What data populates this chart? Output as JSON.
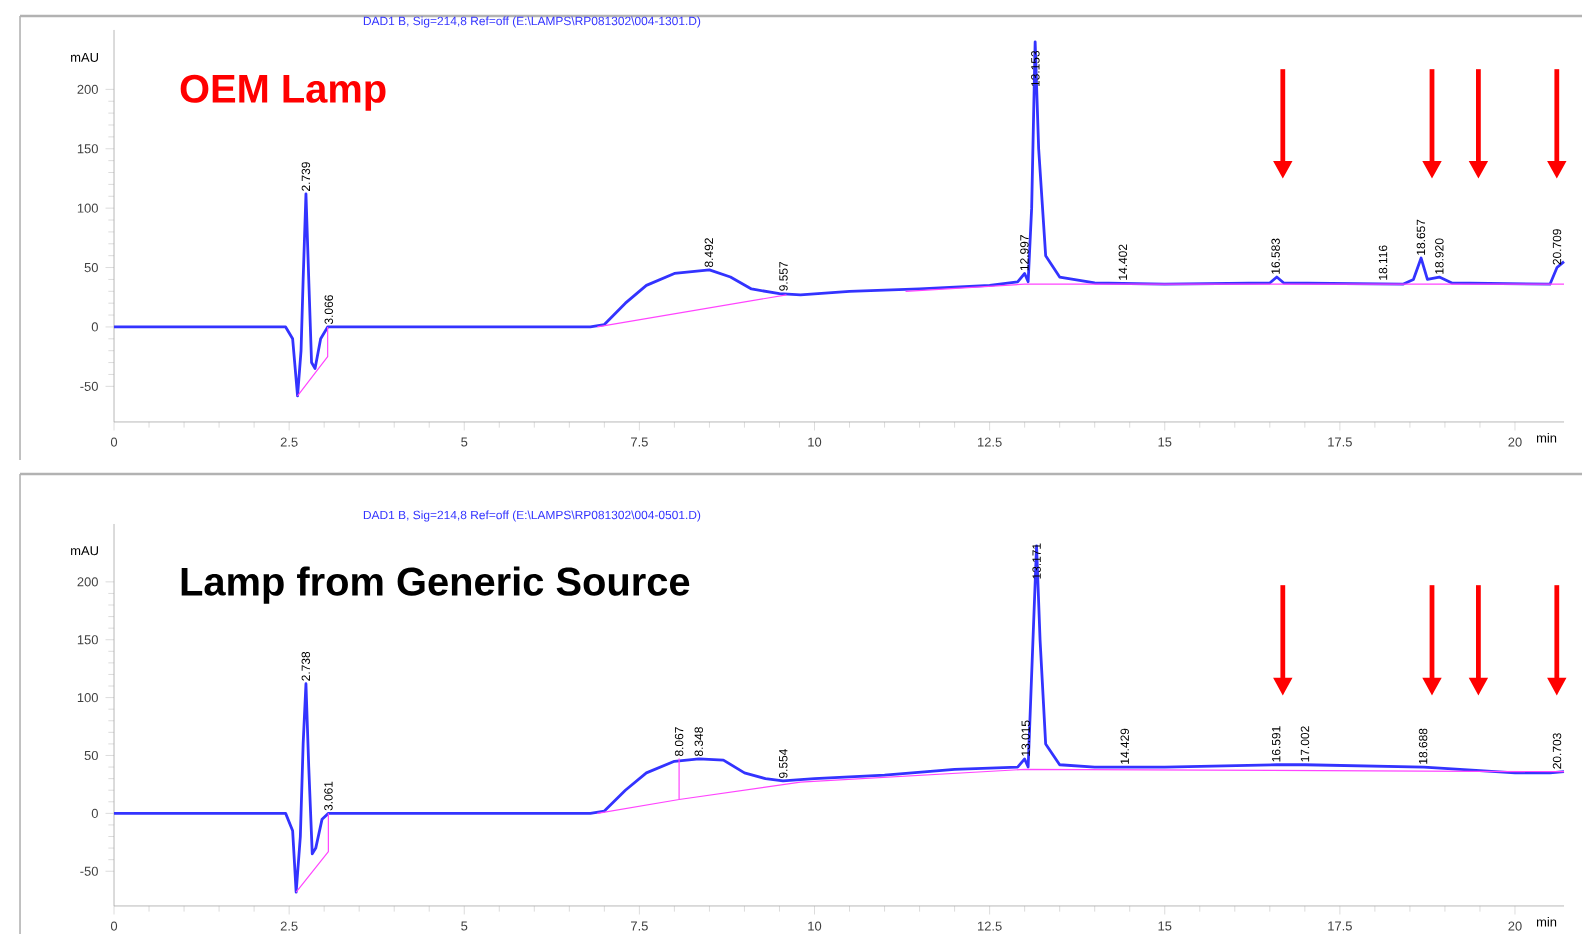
{
  "chart_data": [
    {
      "type": "line",
      "title": "OEM Lamp",
      "xlabel": "min",
      "ylabel": "mAU",
      "xlim": [
        0,
        20.7
      ],
      "ylim": [
        -80,
        250
      ],
      "xticks": [
        0,
        2.5,
        5,
        7.5,
        10,
        12.5,
        15,
        17.5,
        20
      ],
      "yticks": [
        -50,
        0,
        50,
        100,
        150,
        200
      ],
      "grid": false,
      "marker": "none",
      "line_style": "solid",
      "annotations": [
        "DAD1 B, Sig=214,8 Ref=off (E:\\LAMPS\\RP081302\\004-1301.D)",
        {
          "text": "2.739",
          "x": 2.739,
          "y": 112
        },
        {
          "text": "3.066",
          "x": 3.066,
          "y": 0
        },
        {
          "text": "8.492",
          "x": 8.492,
          "y": 48
        },
        {
          "text": "9.557",
          "x": 9.557,
          "y": 28
        },
        {
          "text": "12.997",
          "x": 12.997,
          "y": 45
        },
        {
          "text": "13.153",
          "x": 13.153,
          "y": 200
        },
        {
          "text": "14.402",
          "x": 14.402,
          "y": 37
        },
        {
          "text": "16.583",
          "x": 16.583,
          "y": 42
        },
        {
          "text": "18.116",
          "x": 18.116,
          "y": 37
        },
        {
          "text": "18.657",
          "x": 18.657,
          "y": 58
        },
        {
          "text": "18.920",
          "x": 18.92,
          "y": 42
        },
        {
          "text": "20.709",
          "x": 20.6,
          "y": 50
        }
      ],
      "series": [
        {
          "color": "#3333ff",
          "x": [
            0,
            2.45,
            2.55,
            2.62,
            2.67,
            2.7,
            2.74,
            2.78,
            2.82,
            2.87,
            2.95,
            3.05,
            3.1,
            6.8,
            7.0,
            7.3,
            7.6,
            8.0,
            8.5,
            8.8,
            9.1,
            9.5,
            9.8,
            10.5,
            11.5,
            12.5,
            12.9,
            13.0,
            13.05,
            13.1,
            13.15,
            13.2,
            13.3,
            13.5,
            14,
            15,
            16.5,
            16.6,
            16.7,
            18.4,
            18.55,
            18.66,
            18.75,
            18.92,
            19.1,
            20.5,
            20.6,
            20.7
          ],
          "values": [
            0,
            0,
            -10,
            -58,
            -20,
            40,
            112,
            40,
            -30,
            -35,
            -10,
            0,
            0,
            0,
            2,
            20,
            35,
            45,
            48,
            42,
            32,
            28,
            27,
            30,
            32,
            35,
            38,
            45,
            38,
            100,
            240,
            150,
            60,
            42,
            37,
            36,
            37,
            42,
            37,
            36,
            40,
            58,
            40,
            42,
            37,
            36,
            50,
            55
          ]
        },
        {
          "color": "#ff44ff",
          "x": [
            2.62,
            3.05,
            3.05,
            4,
            6.9,
            9.6,
            10.5,
            11.3,
            13.0,
            20.7
          ],
          "values": [
            -58,
            -25,
            0,
            null,
            0,
            27,
            null,
            30,
            36,
            36
          ]
        }
      ]
    },
    {
      "type": "line",
      "title": "Lamp from Generic Source",
      "xlabel": "min",
      "ylabel": "mAU",
      "xlim": [
        0,
        20.7
      ],
      "ylim": [
        -80,
        250
      ],
      "xticks": [
        0,
        2.5,
        5,
        7.5,
        10,
        12.5,
        15,
        17.5,
        20
      ],
      "yticks": [
        -50,
        0,
        50,
        100,
        150,
        200
      ],
      "grid": false,
      "marker": "none",
      "line_style": "solid",
      "annotations": [
        "DAD1 B, Sig=214,8 Ref=off (E:\\LAMPS\\RP081302\\004-0501.D)",
        {
          "text": "2.738",
          "x": 2.738,
          "y": 112
        },
        {
          "text": "3.061",
          "x": 3.061,
          "y": 0
        },
        {
          "text": "8.067",
          "x": 8.067,
          "y": 47
        },
        {
          "text": "8.348",
          "x": 8.348,
          "y": 47
        },
        {
          "text": "9.554",
          "x": 9.554,
          "y": 28
        },
        {
          "text": "13.015",
          "x": 13.015,
          "y": 47
        },
        {
          "text": "13.171",
          "x": 13.171,
          "y": 200
        },
        {
          "text": "14.429",
          "x": 14.429,
          "y": 40
        },
        {
          "text": "16.591",
          "x": 16.591,
          "y": 42
        },
        {
          "text": "17.002",
          "x": 17.002,
          "y": 42
        },
        {
          "text": "18.688",
          "x": 18.688,
          "y": 40
        },
        {
          "text": "20.703",
          "x": 20.6,
          "y": 36
        }
      ],
      "series": [
        {
          "color": "#3333ff",
          "x": [
            0,
            2.45,
            2.55,
            2.6,
            2.66,
            2.7,
            2.74,
            2.78,
            2.83,
            2.88,
            2.97,
            3.06,
            6.8,
            7.0,
            7.3,
            7.6,
            8.0,
            8.35,
            8.7,
            9.0,
            9.3,
            9.55,
            10,
            11,
            12,
            12.9,
            13.0,
            13.05,
            13.1,
            13.17,
            13.22,
            13.3,
            13.5,
            14,
            15,
            16.6,
            17.0,
            18.7,
            19.5,
            20.0,
            20.5,
            20.7
          ],
          "values": [
            0,
            0,
            -15,
            -68,
            -20,
            60,
            112,
            40,
            -35,
            -30,
            -5,
            0,
            0,
            2,
            20,
            35,
            45,
            47,
            46,
            35,
            30,
            28,
            30,
            33,
            38,
            40,
            47,
            40,
            120,
            231,
            150,
            60,
            42,
            40,
            40,
            42,
            42,
            40,
            37,
            35,
            35,
            36
          ]
        },
        {
          "color": "#ff44ff",
          "x": [
            2.6,
            3.06,
            3.06,
            4,
            6.9,
            8.067,
            8.067,
            8.067,
            9.8,
            13.0,
            20.7
          ],
          "values": [
            -68,
            -33,
            0,
            null,
            0,
            12,
            47,
            12,
            27,
            38,
            36
          ]
        }
      ]
    }
  ]
}
